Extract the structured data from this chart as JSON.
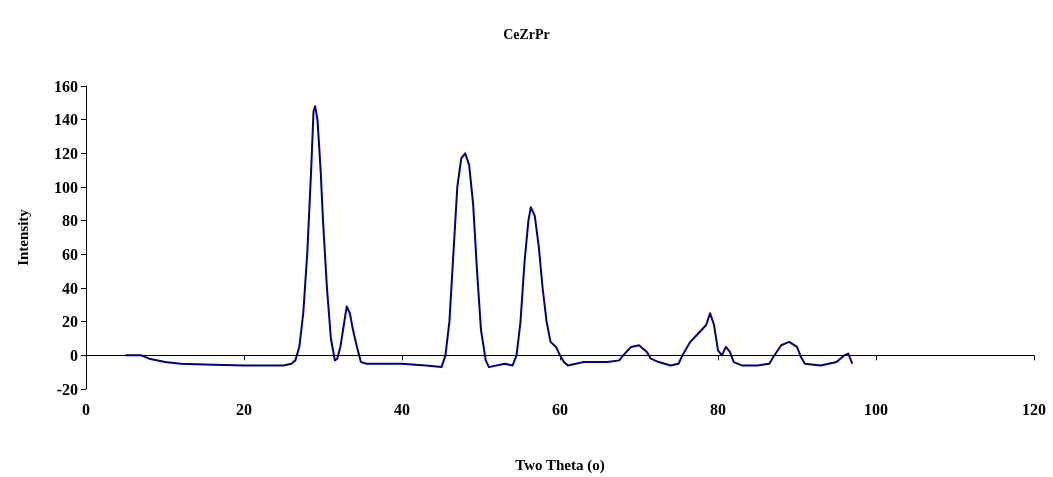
{
  "chart_data": {
    "type": "line",
    "title": "CeZrPr",
    "xlabel": "Two Theta (o)",
    "ylabel": "Intensity",
    "xlim": [
      0,
      120
    ],
    "xticks": [
      0,
      20,
      40,
      60,
      80,
      100,
      120
    ],
    "ylim": [
      -20,
      160
    ],
    "yticks": [
      -20,
      0,
      20,
      40,
      60,
      80,
      100,
      120,
      140,
      160
    ],
    "marker": "none",
    "line_style": "solid",
    "series": [
      {
        "color": "#000080",
        "x": [
          5,
          7,
          8,
          10,
          12,
          15,
          20,
          25,
          26,
          26.5,
          27,
          27.5,
          28,
          28.5,
          28.8,
          29,
          29.3,
          29.7,
          30,
          30.5,
          31,
          31.5,
          31.8,
          32.2,
          32.7,
          33,
          33.4,
          33.8,
          34.3,
          34.8,
          35.5,
          40,
          43,
          45,
          45.5,
          46,
          46.5,
          47,
          47.5,
          48,
          48.5,
          49,
          49.5,
          50,
          50.6,
          51,
          53,
          54,
          54.5,
          55,
          55.5,
          56,
          56.3,
          56.8,
          57.3,
          57.8,
          58.3,
          58.8,
          59.5,
          60,
          60.5,
          61,
          63,
          66,
          67.5,
          68,
          69,
          70,
          71,
          71.5,
          72.5,
          74,
          75,
          75.5,
          76.5,
          77.5,
          78.5,
          79,
          79.5,
          80,
          80.5,
          81,
          81.5,
          82,
          83,
          85,
          86.5,
          87,
          88,
          89,
          90,
          90.5,
          91,
          93,
          95,
          96,
          96.5,
          97
        ],
        "values": [
          0,
          0,
          -2,
          -4,
          -5,
          -5.5,
          -6,
          -6,
          -5,
          -3,
          5,
          25,
          60,
          110,
          145,
          148,
          140,
          110,
          80,
          40,
          10,
          -3,
          -2,
          5,
          20,
          29,
          25,
          15,
          5,
          -4,
          -5,
          -5,
          -6,
          -7,
          0,
          20,
          60,
          100,
          117,
          120,
          113,
          90,
          50,
          15,
          -3,
          -7,
          -5,
          -6,
          0,
          20,
          55,
          80,
          88,
          83,
          65,
          40,
          20,
          8,
          5,
          0,
          -4,
          -6,
          -4,
          -4,
          -3,
          0,
          5,
          6,
          2,
          -2,
          -4,
          -6,
          -5,
          0,
          8,
          13,
          18,
          25,
          18,
          3,
          0,
          5,
          2,
          -4,
          -6,
          -6,
          -5,
          -1,
          6,
          8,
          5,
          -1,
          -5,
          -6,
          -4,
          0,
          1,
          -5
        ]
      }
    ]
  }
}
